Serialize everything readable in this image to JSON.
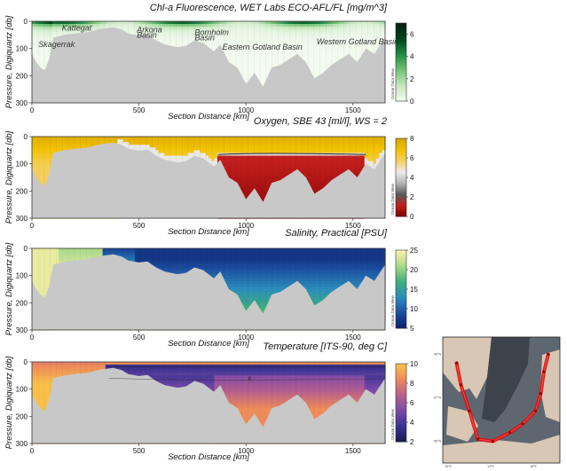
{
  "x_axis": {
    "label": "Section Distance [km]",
    "ticks": [
      0,
      500,
      1000,
      1500
    ],
    "range": [
      0,
      1650
    ]
  },
  "y_axis": {
    "label": "Pressure, Digiquartz [db]",
    "ticks": [
      0,
      100,
      200,
      300
    ],
    "range": [
      0,
      300
    ]
  },
  "colorbar_caption": "Ocean Data View",
  "chart_data": [
    {
      "type": "heatmap",
      "title": "Chl-a Fluorescence, WET Labs ECO-AFL/FL [mg/m^3]",
      "variable": "chlorophyll",
      "colorbar": {
        "ticks": [
          0,
          2,
          4,
          6
        ],
        "range": [
          0,
          7
        ],
        "colors": [
          "#f4fbf1",
          "#c7e9c0",
          "#74c476",
          "#238b45",
          "#00441b",
          "#0a1f12"
        ]
      },
      "annotations": [
        {
          "text": "Kattegat",
          "x_km": 140,
          "depth": 35
        },
        {
          "text": "Arkona",
          "x_km": 490,
          "depth": 40
        },
        {
          "text": "Basin",
          "x_km": 490,
          "depth": 60
        },
        {
          "text": "Bornholm",
          "x_km": 760,
          "depth": 50
        },
        {
          "text": "Basin",
          "x_km": 760,
          "depth": 70
        },
        {
          "text": "Skagerrak",
          "x_km": 30,
          "depth": 95
        },
        {
          "text": "Western Gotland Basin",
          "x_km": 1330,
          "depth": 85
        },
        {
          "text": "Eastern Gotland Basin",
          "x_km": 890,
          "depth": 105
        }
      ]
    },
    {
      "type": "heatmap",
      "title": "Oxygen, SBE 43 [ml/l], WS = 2",
      "variable": "oxygen",
      "colorbar": {
        "ticks": [
          0,
          2,
          4,
          6,
          8
        ],
        "range": [
          0,
          8
        ],
        "colors": [
          "#7a0000",
          "#c41e1e",
          "#5a5a5a",
          "#b4b4b4",
          "#ececec",
          "#f5d060",
          "#f2c300",
          "#d6a400"
        ]
      }
    },
    {
      "type": "heatmap",
      "title": "Salinity, Practical [PSU]",
      "variable": "salinity",
      "colorbar": {
        "ticks": [
          5,
          10,
          15,
          20,
          25
        ],
        "range": [
          5,
          25
        ],
        "colors": [
          "#0d1c6b",
          "#1c4fa0",
          "#2b8cbe",
          "#3fae7a",
          "#a8d98a",
          "#fff2a8"
        ]
      }
    },
    {
      "type": "heatmap",
      "title": "Temperature [ITS-90, deg C]",
      "variable": "temperature",
      "colorbar": {
        "ticks": [
          2,
          4,
          6,
          8,
          10
        ],
        "range": [
          2,
          10
        ],
        "colors": [
          "#141a4a",
          "#3b3392",
          "#7a49a9",
          "#b65f8e",
          "#ee8a5b",
          "#f9c04b"
        ]
      },
      "contours": [
        {
          "label": "6",
          "x_km": 1010,
          "depth": 68
        }
      ]
    }
  ],
  "bathymetry_profile": {
    "distance_km": [
      0,
      20,
      40,
      60,
      80,
      100,
      150,
      200,
      260,
      320,
      380,
      420,
      450,
      500,
      540,
      580,
      620,
      680,
      720,
      760,
      800,
      850,
      880,
      920,
      960,
      1000,
      1040,
      1080,
      1120,
      1160,
      1200,
      1240,
      1280,
      1320,
      1360,
      1400,
      1440,
      1480,
      1520,
      1560,
      1600,
      1650
    ],
    "max_depth_db": [
      120,
      150,
      170,
      180,
      140,
      60,
      50,
      45,
      40,
      28,
      22,
      30,
      45,
      52,
      48,
      70,
      85,
      95,
      90,
      70,
      80,
      110,
      85,
      150,
      170,
      230,
      190,
      240,
      170,
      160,
      140,
      120,
      150,
      210,
      190,
      160,
      140,
      120,
      150,
      100,
      120,
      60
    ]
  },
  "inset_map": {
    "lat_labels": [
      "59°N",
      "57°N",
      "55°N"
    ],
    "lon_labels": [
      "10°E",
      "14°E",
      "18°E"
    ],
    "track_points": [
      {
        "lon": 10.8,
        "lat": 58.6
      },
      {
        "lon": 11.2,
        "lat": 57.6
      },
      {
        "lon": 12.0,
        "lat": 56.4
      },
      {
        "lon": 12.8,
        "lat": 55.1
      },
      {
        "lon": 14.2,
        "lat": 55.0
      },
      {
        "lon": 15.8,
        "lat": 55.4
      },
      {
        "lon": 17.0,
        "lat": 55.8
      },
      {
        "lon": 18.2,
        "lat": 56.4
      },
      {
        "lon": 18.7,
        "lat": 57.2
      },
      {
        "lon": 19.0,
        "lat": 58.2
      },
      {
        "lon": 19.4,
        "lat": 59.0
      }
    ]
  }
}
